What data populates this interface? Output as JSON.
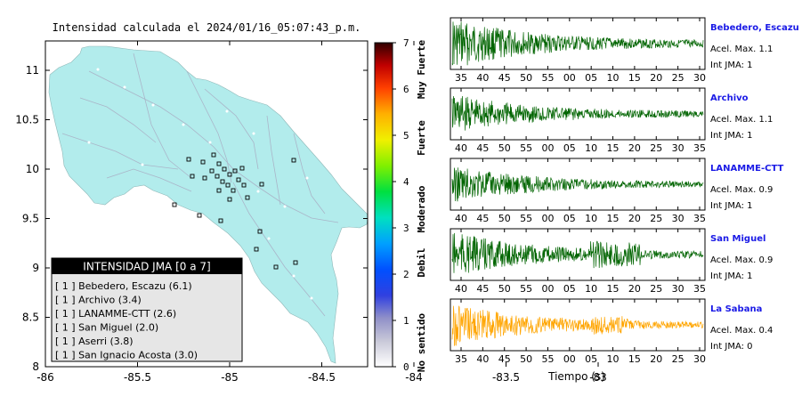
{
  "map": {
    "title": "Intensidad calculada el 2024/01/16_05:07:43_p.m.",
    "lon_ticks": [
      "-86",
      "-85.5",
      "-85",
      "-84.5",
      "-84",
      "-83.5",
      "-83"
    ],
    "lat_ticks": [
      "11",
      "10.5",
      "10",
      "9.5",
      "9",
      "8.5",
      "8"
    ],
    "land_color": "#b2ecec",
    "legend": {
      "title": "INTENSIDAD JMA [0 a 7]",
      "items": [
        "[ 1 ]  Bebedero, Escazu (6.1)",
        "[ 1 ]  Archivo (3.4)",
        "[ 1 ]  LANAMME-CTT (2.6)",
        "[ 1 ]  San Miguel (2.0)",
        "[ 1 ]  Aserri (3.8)",
        "[ 1 ]  San Ignacio Acosta (3.0)"
      ]
    }
  },
  "colorbar": {
    "ticks": [
      "0",
      "1",
      "2",
      "3",
      "4",
      "5",
      "6",
      "7"
    ],
    "labels": [
      "No sentido",
      "Debil",
      "Moderado",
      "Fuerte",
      "Muy Fuerte"
    ]
  },
  "waveforms": [
    {
      "station": "Bebedero, Escazu",
      "accel": "Acel. Max. 1.1",
      "jma": "Int JMA: 1",
      "color": "#006400",
      "ticks": [
        "35",
        "40",
        "45",
        "50",
        "55",
        "00",
        "05",
        "10",
        "15",
        "20",
        "25",
        "30"
      ],
      "amp": 1.0
    },
    {
      "station": "Archivo",
      "accel": "Acel. Max. 1.1",
      "jma": "Int JMA: 1",
      "color": "#006400",
      "ticks": [
        "40",
        "45",
        "50",
        "55",
        "00",
        "05",
        "10",
        "15",
        "20",
        "25",
        "30",
        "35"
      ],
      "amp": 0.8
    },
    {
      "station": "LANAMME-CTT",
      "accel": "Acel. Max. 0.9",
      "jma": "Int JMA: 1",
      "color": "#006400",
      "ticks": [
        "40",
        "45",
        "50",
        "55",
        "00",
        "05",
        "10",
        "15",
        "20",
        "25",
        "30",
        "35"
      ],
      "amp": 0.75
    },
    {
      "station": "San Miguel",
      "accel": "Acel. Max. 0.9",
      "jma": "Int JMA: 1",
      "color": "#006400",
      "ticks": [
        "40",
        "45",
        "50",
        "55",
        "00",
        "05",
        "10",
        "15",
        "20",
        "25",
        "30",
        "35"
      ],
      "amp": 0.9
    },
    {
      "station": "La Sabana",
      "accel": "Acel. Max. 0.4",
      "jma": "Int JMA: 0",
      "color": "#ffa500",
      "ticks": [
        "35",
        "40",
        "45",
        "50",
        "55",
        "00",
        "05",
        "10",
        "15",
        "20",
        "25",
        "30"
      ],
      "amp": 0.85
    }
  ],
  "xaxis_label": "Tiempo (s)"
}
